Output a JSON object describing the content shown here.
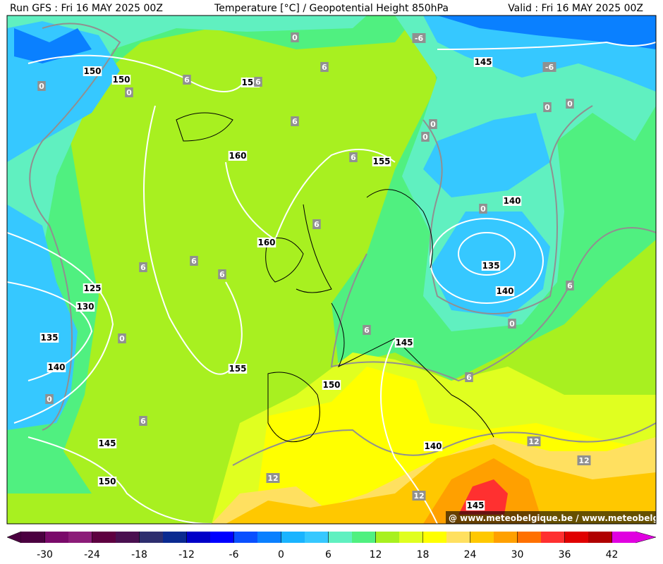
{
  "header": {
    "run": "Run GFS : Fri 16 MAY 2025 00Z",
    "title": "Temperature [°C] / Geopotential Height 850hPa",
    "valid": "Valid : Fri 16 MAY 2025 00Z"
  },
  "map": {
    "height_labels": [
      150,
      150,
      155,
      160,
      155,
      145,
      140,
      160,
      135,
      140,
      125,
      130,
      135,
      140,
      155,
      150,
      145,
      145,
      150,
      140,
      145
    ],
    "temperature_labels": [
      0,
      -6,
      6,
      0,
      0,
      6,
      6,
      -6,
      0,
      0,
      0,
      0,
      6,
      6,
      6,
      0,
      6,
      6,
      6,
      0,
      6,
      0,
      6,
      6,
      0,
      6,
      12,
      12,
      12,
      12
    ],
    "watermark": "@ www.meteobelgique.be / www.meteobelgique.be"
  },
  "colorbar": {
    "range": [
      -33,
      45
    ],
    "ticks": [
      -30,
      -24,
      -18,
      -12,
      -6,
      0,
      6,
      12,
      18,
      24,
      30,
      36,
      42
    ],
    "colors": [
      "#4b0040",
      "#7a0a6a",
      "#8c1c78",
      "#5e0040",
      "#4a1050",
      "#2e2e6e",
      "#0a2a90",
      "#0000c8",
      "#0000ff",
      "#0a50ff",
      "#0a80ff",
      "#1ab4ff",
      "#36c8ff",
      "#60f0c0",
      "#50f080",
      "#a8f020",
      "#e0ff20",
      "#ffff00",
      "#ffe060",
      "#ffc800",
      "#ffa000",
      "#ff7000",
      "#ff3030",
      "#e00000",
      "#b00000",
      "#e000e0"
    ]
  }
}
